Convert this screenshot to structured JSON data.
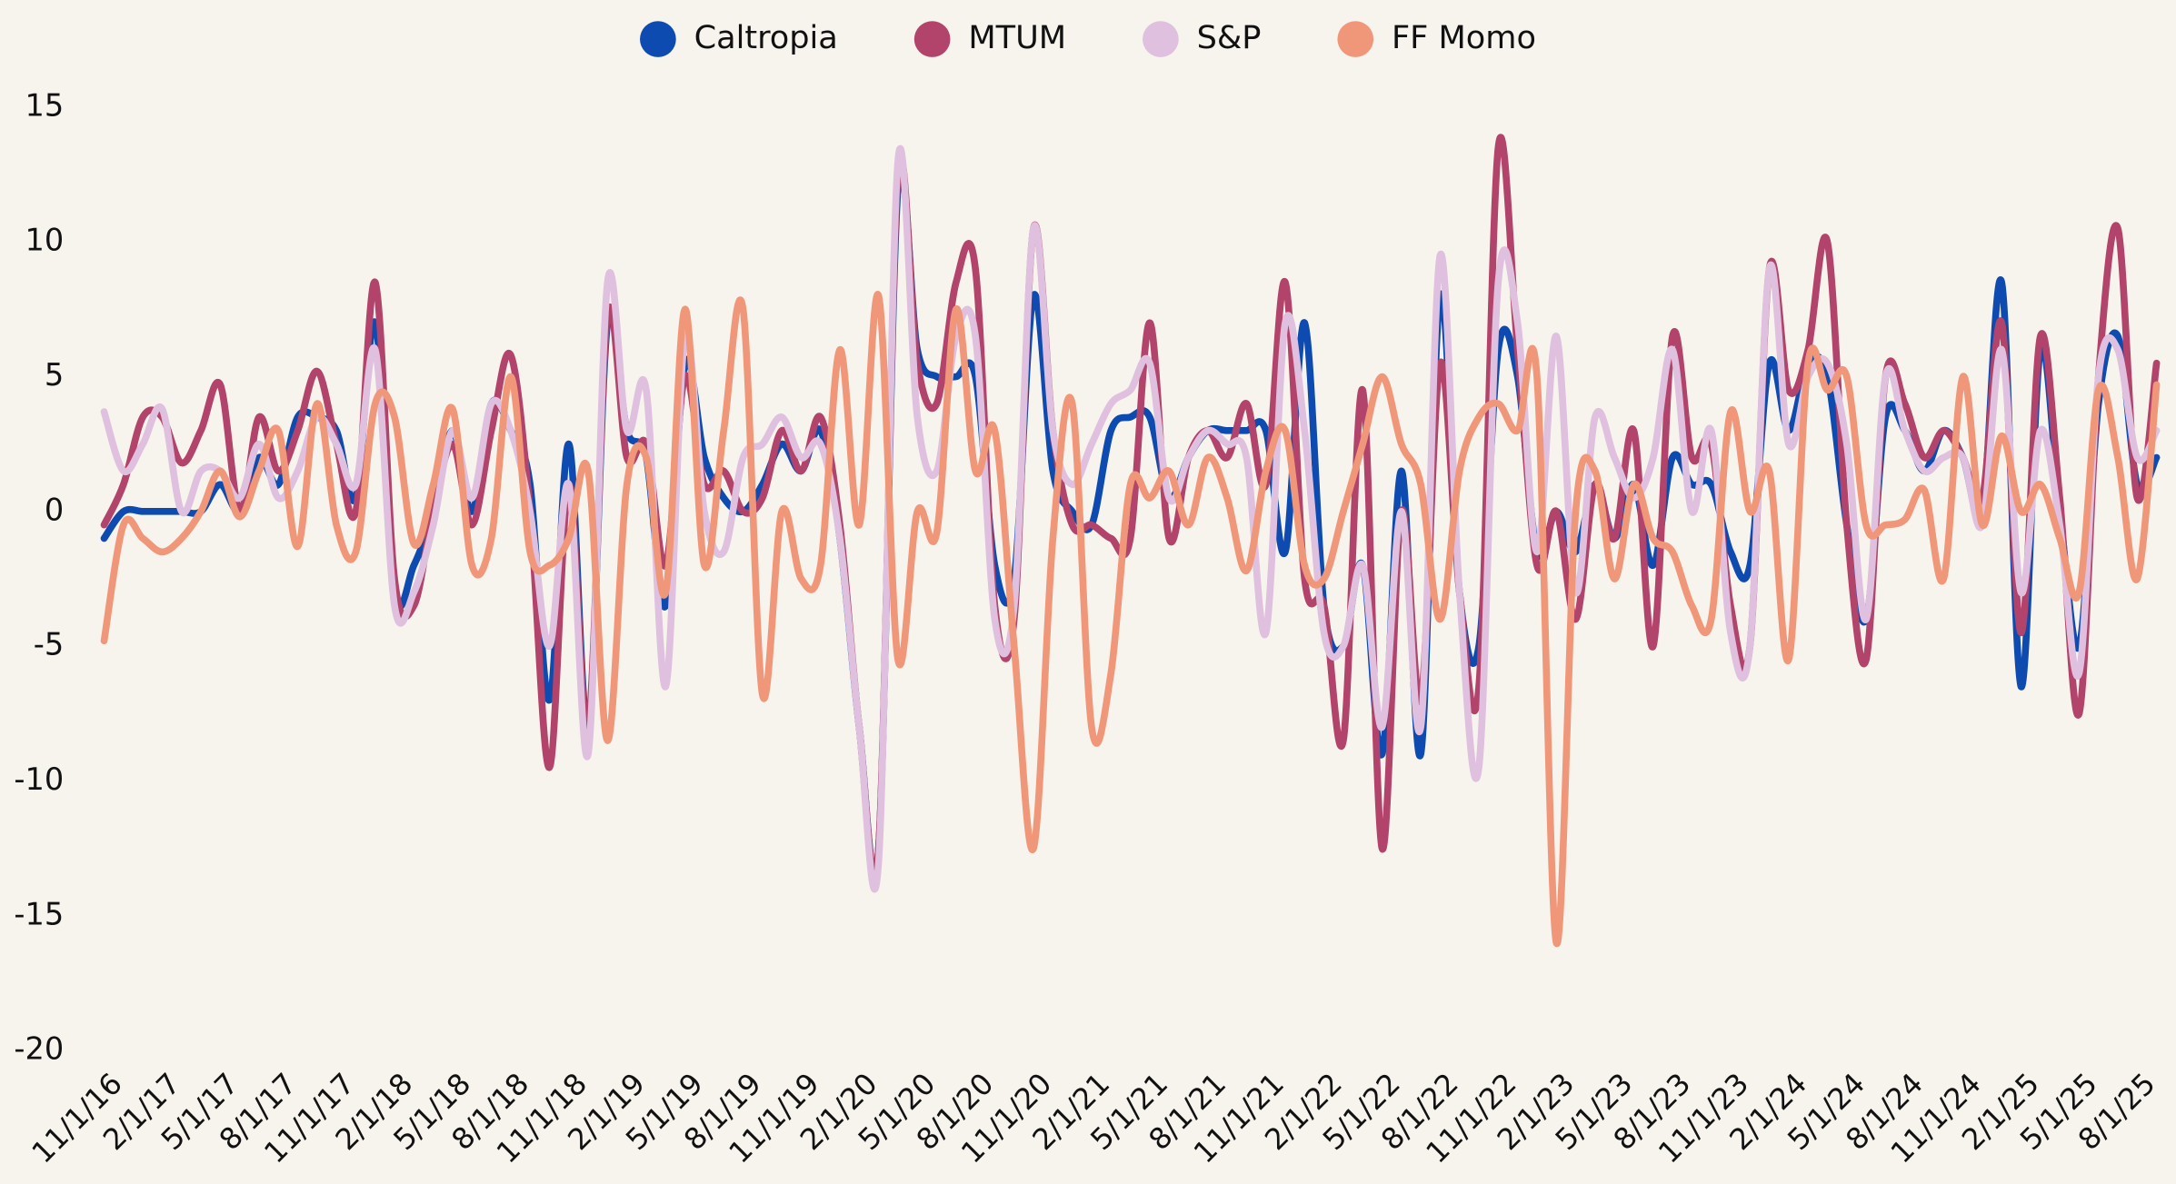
{
  "chart_data": {
    "type": "line",
    "categories": [
      "11/1/16",
      null,
      null,
      "2/1/17",
      null,
      null,
      "5/1/17",
      null,
      null,
      "8/1/17",
      null,
      null,
      "11/1/17",
      null,
      null,
      "2/1/18",
      null,
      null,
      "5/1/18",
      null,
      null,
      "8/1/18",
      null,
      null,
      "11/1/18",
      null,
      null,
      "2/1/19",
      null,
      null,
      "5/1/19",
      null,
      null,
      "8/1/19",
      null,
      null,
      "11/1/19",
      null,
      null,
      "2/1/20",
      null,
      null,
      "5/1/20",
      null,
      null,
      "8/1/20",
      null,
      null,
      "11/1/20",
      null,
      null,
      "2/1/21",
      null,
      null,
      "5/1/21",
      null,
      null,
      "8/1/21",
      null,
      null,
      "11/1/21",
      null,
      null,
      "2/1/22",
      null,
      null,
      "5/1/22",
      null,
      null,
      "8/1/22",
      null,
      null,
      "11/1/22",
      null,
      null,
      "2/1/23",
      null,
      null,
      "5/1/23",
      null,
      null,
      "8/1/23",
      null,
      null,
      "11/1/23",
      null,
      null,
      "2/1/24",
      null,
      null,
      "5/1/24",
      null,
      null,
      "8/1/24",
      null,
      null,
      "11/1/24",
      null,
      null,
      "2/1/25",
      null,
      null,
      "5/1/25",
      null,
      null,
      "8/1/25",
      null
    ],
    "series": [
      {
        "name": "Caltropia",
        "color": "#0e4bb0",
        "values": [
          -1,
          0,
          0,
          0,
          0,
          0,
          1,
          0,
          2,
          1,
          3.5,
          3.5,
          3,
          0.5,
          7,
          -3,
          -2,
          0,
          3,
          0,
          4,
          3,
          1,
          -7,
          2.5,
          -8,
          7,
          3,
          2,
          -3.5,
          5.5,
          2,
          0.5,
          0,
          1,
          2.5,
          1.5,
          3,
          -1,
          -8,
          -12.5,
          12,
          6,
          5,
          5,
          5,
          -2,
          -2.5,
          8,
          1.5,
          0,
          -0.5,
          3,
          3.5,
          3.5,
          0.5,
          2,
          3,
          3,
          3,
          3,
          -1.5,
          7,
          -3.5,
          -5,
          -2,
          -9,
          1.5,
          -9,
          8,
          -3,
          -5,
          6,
          5,
          -1.5,
          0,
          -1.5,
          1,
          -1,
          1,
          -2,
          2,
          1,
          1,
          -1.5,
          -2,
          5.5,
          3,
          5.5,
          5,
          -0.5,
          -4,
          3.5,
          3,
          1.5,
          3,
          2,
          0,
          8.5,
          -6.5,
          6,
          0,
          -5,
          4,
          6.5,
          1,
          2
        ]
      },
      {
        "name": "MTUM",
        "color": "#b2436a",
        "values": [
          -0.5,
          1,
          3.5,
          3.5,
          1.8,
          3,
          4.7,
          0,
          3.5,
          1.5,
          3,
          5.2,
          2.5,
          0,
          8.5,
          -2.5,
          -3.5,
          0,
          2.5,
          -0.5,
          3,
          5.8,
          0,
          -9.5,
          1,
          -8,
          7.3,
          2,
          2.5,
          -2,
          5,
          1,
          1.5,
          0,
          0.5,
          3,
          1.5,
          3.5,
          -0.5,
          -8,
          -12.5,
          12.5,
          5.5,
          4,
          8.5,
          9,
          -3.5,
          -4,
          10.5,
          3,
          -0.5,
          -0.5,
          -1,
          -1,
          7,
          -1,
          2,
          3,
          2,
          4,
          1,
          8.5,
          -2.5,
          -3.5,
          -8.5,
          4.5,
          -12.5,
          0,
          -7,
          5.5,
          -3,
          -6.5,
          13.5,
          6,
          -2,
          0,
          -4,
          1,
          -1,
          3,
          -5,
          6.5,
          2,
          2.5,
          -3.5,
          -5,
          9,
          4.5,
          6,
          10,
          -0.5,
          -5.5,
          5,
          4,
          2,
          3,
          2,
          0.5,
          7,
          -4.5,
          6.5,
          0.5,
          -7.5,
          5,
          10.5,
          0.5,
          5.5
        ]
      },
      {
        "name": "S&P",
        "color": "#dfc0de",
        "values": [
          3.7,
          1.5,
          2.5,
          3.8,
          0,
          1.5,
          1.5,
          0.5,
          2.5,
          0.5,
          1.5,
          3.5,
          2.5,
          1,
          6,
          -3.5,
          -3,
          -0.5,
          3,
          0.5,
          4,
          3,
          0,
          -5,
          1,
          -9,
          8.5,
          3,
          4.5,
          -6.5,
          6.5,
          0,
          -1.5,
          2,
          2.5,
          3.5,
          2,
          2.5,
          -1,
          -8,
          -13,
          13,
          3.5,
          1.5,
          6.5,
          6.5,
          -4,
          -3.5,
          10.5,
          3,
          1,
          2.5,
          4,
          4.5,
          5.5,
          0.5,
          2,
          3,
          2.5,
          2,
          -4.5,
          7,
          3,
          -4.5,
          -5,
          -2,
          -8,
          0,
          -8,
          9.5,
          -3,
          -9.5,
          8.5,
          7,
          -1.5,
          6.5,
          -3,
          3.5,
          2,
          0.5,
          2,
          6,
          0,
          3,
          -4.5,
          -5,
          9,
          2.5,
          5,
          5.5,
          2.5,
          -4,
          5,
          3,
          1.5,
          2,
          2,
          -0.5,
          6,
          -3,
          3,
          -0.5,
          -6,
          5,
          6,
          2,
          3
        ]
      },
      {
        "name": "FF Momo",
        "color": "#f0977a",
        "values": [
          -4.8,
          -0.5,
          -1,
          -1.5,
          -1,
          0,
          1.5,
          -0.2,
          1.5,
          3,
          -1.3,
          4,
          -0.5,
          -1.5,
          4,
          3.5,
          -1.2,
          1,
          3.8,
          -2,
          -1,
          5,
          -1.5,
          -2,
          -1,
          1.5,
          -8.5,
          1,
          2,
          -3,
          7.5,
          -2,
          3,
          7.5,
          -6.8,
          0,
          -2.5,
          -2,
          6,
          -0.5,
          8,
          -5.5,
          0,
          -0.8,
          7.5,
          1.5,
          3,
          -5,
          -12.5,
          -1,
          4,
          -8,
          -6,
          1,
          0.5,
          1.5,
          -0.5,
          2,
          0.5,
          -2.2,
          1.5,
          3,
          -2,
          -2.5,
          0,
          2.5,
          5,
          2.5,
          1,
          -4,
          1.5,
          3.5,
          4,
          3,
          5,
          -16,
          0,
          1.5,
          -2.5,
          1,
          -1,
          -1.5,
          -3.5,
          -4,
          3.7,
          0,
          1.5,
          -5.5,
          5.5,
          4.5,
          5,
          -0.5,
          -0.5,
          -0.3,
          0.8,
          -2.5,
          5,
          -0.5,
          2.8,
          0,
          1,
          -1,
          -3,
          4.5,
          2,
          -2.5,
          4.7
        ]
      }
    ],
    "ylim": [
      -20,
      15
    ],
    "yticks": [
      15,
      10,
      5,
      0,
      -5,
      -10,
      -15,
      -20
    ],
    "grid": false,
    "legend": "top"
  }
}
